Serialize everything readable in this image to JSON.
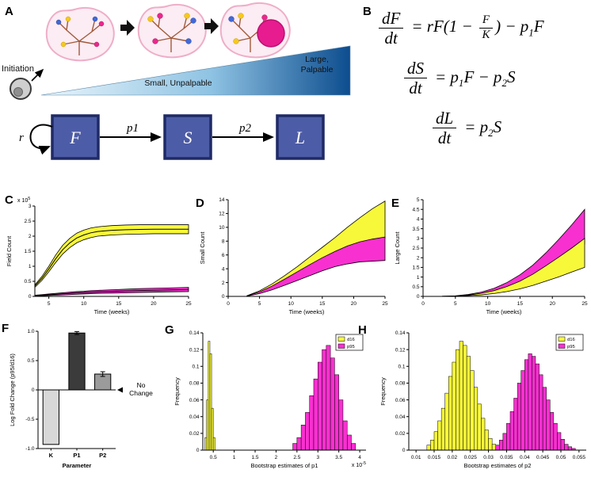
{
  "panels": {
    "a": {
      "label": "A",
      "initiation_label": "Initiation",
      "gradient_label_small": "Small, Unpalpable",
      "gradient_label_large_1": "Large,",
      "gradient_label_large_2": "Palpable",
      "box_f": "F",
      "box_s": "S",
      "box_l": "L",
      "rate_r": "r",
      "rate_p1": "p1",
      "rate_p2": "p2"
    },
    "b": {
      "label": "B",
      "eq1": {
        "num": "dF",
        "den": "dt",
        "a": "= rF(1 − ",
        "fnum": "F",
        "fden": "K",
        "b": ") − p",
        "s1": "1",
        "c": "F"
      },
      "eq2": {
        "num": "dS",
        "den": "dt",
        "a": "= p",
        "s1": "1",
        "b": "F − p",
        "s2": "2",
        "c": "S"
      },
      "eq3": {
        "num": "dL",
        "den": "dt",
        "a": "= p",
        "s1": "2",
        "b": "S"
      }
    },
    "c": {
      "label": "C"
    },
    "d": {
      "label": "D"
    },
    "e": {
      "label": "E"
    },
    "f": {
      "label": "F"
    },
    "g": {
      "label": "G"
    },
    "h": {
      "label": "H"
    }
  },
  "colors": {
    "yellow": "#f8f83a",
    "magenta": "#f830d0",
    "box_blue": "#4d5ca6"
  },
  "chart_data": [
    {
      "id": "field-count",
      "panel": "C",
      "type": "area",
      "xlabel": "Time (weeks)",
      "ylabel": "Field Count",
      "y_multiplier_base": "x 10",
      "y_multiplier_exp": "5",
      "xlim": [
        3,
        25
      ],
      "ylim": [
        0,
        3
      ],
      "xticks": [
        5,
        10,
        15,
        20,
        25
      ],
      "yticks": [
        0,
        0.5,
        1,
        1.5,
        2,
        2.5,
        3
      ],
      "ytick_labels": [
        "0",
        "0.5",
        "1",
        "1.5",
        "2",
        "2.5",
        "3"
      ],
      "series": [
        {
          "name": "d16",
          "color": "yellow",
          "center": true,
          "x": [
            3,
            4,
            5,
            6,
            7,
            8,
            9,
            10,
            11,
            12,
            14,
            16,
            18,
            20,
            22,
            25
          ],
          "upper": [
            0.38,
            0.66,
            1.0,
            1.38,
            1.7,
            1.93,
            2.1,
            2.2,
            2.27,
            2.31,
            2.35,
            2.37,
            2.38,
            2.38,
            2.38,
            2.38
          ],
          "lower": [
            0.3,
            0.53,
            0.82,
            1.13,
            1.41,
            1.62,
            1.78,
            1.88,
            1.95,
            2.0,
            2.04,
            2.06,
            2.07,
            2.08,
            2.08,
            2.08
          ]
        },
        {
          "name": "p95",
          "color": "magenta",
          "center": true,
          "x": [
            3,
            4,
            5,
            6,
            7,
            8,
            9,
            10,
            11,
            12,
            14,
            16,
            18,
            20,
            22,
            25
          ],
          "upper": [
            0.04,
            0.06,
            0.08,
            0.1,
            0.12,
            0.14,
            0.16,
            0.17,
            0.19,
            0.2,
            0.22,
            0.24,
            0.26,
            0.27,
            0.28,
            0.3
          ],
          "lower": [
            0.01,
            0.02,
            0.03,
            0.04,
            0.05,
            0.06,
            0.07,
            0.08,
            0.09,
            0.1,
            0.11,
            0.12,
            0.13,
            0.14,
            0.15,
            0.16
          ]
        }
      ]
    },
    {
      "id": "small-count",
      "panel": "D",
      "type": "area",
      "xlabel": "Time (weeks)",
      "ylabel": "Small Count",
      "xlim": [
        0,
        25
      ],
      "ylim": [
        0,
        14
      ],
      "xticks": [
        0,
        5,
        10,
        15,
        20,
        25
      ],
      "yticks": [
        0,
        2,
        4,
        6,
        8,
        10,
        12,
        14
      ],
      "series": [
        {
          "name": "d16",
          "color": "yellow",
          "x": [
            3,
            5,
            7,
            9,
            11,
            13,
            15,
            17,
            19,
            21,
            23,
            25
          ],
          "upper": [
            0.1,
            0.8,
            1.8,
            3.0,
            4.3,
            5.7,
            7.1,
            8.5,
            10.0,
            11.4,
            12.7,
            13.8
          ],
          "lower": [
            0.05,
            0.55,
            1.25,
            2.05,
            2.9,
            3.8,
            4.7,
            5.6,
            6.4,
            7.1,
            7.8,
            8.4
          ]
        },
        {
          "name": "p95",
          "color": "magenta",
          "x": [
            3,
            5,
            7,
            9,
            11,
            13,
            15,
            17,
            19,
            21,
            23,
            25
          ],
          "upper": [
            0.07,
            0.65,
            1.5,
            2.5,
            3.55,
            4.6,
            5.6,
            6.5,
            7.3,
            7.9,
            8.3,
            8.6
          ],
          "lower": [
            0.04,
            0.4,
            0.95,
            1.6,
            2.3,
            3.0,
            3.7,
            4.3,
            4.7,
            5.0,
            5.1,
            5.2
          ]
        }
      ]
    },
    {
      "id": "large-count",
      "panel": "E",
      "type": "area",
      "xlabel": "Time (weeks)",
      "ylabel": "Large Count",
      "xlim": [
        0,
        25
      ],
      "ylim": [
        0,
        5
      ],
      "xticks": [
        0,
        5,
        10,
        15,
        20,
        25
      ],
      "yticks": [
        0,
        0.5,
        1,
        1.5,
        2,
        2.5,
        3,
        3.5,
        4,
        4.5,
        5
      ],
      "ytick_labels": [
        "0",
        "0.5",
        "1",
        "1.5",
        "2",
        "2.5",
        "3",
        "3.5",
        "4",
        "4.5",
        "5"
      ],
      "series": [
        {
          "name": "p95",
          "color": "magenta",
          "x": [
            3,
            5,
            7,
            9,
            11,
            13,
            15,
            17,
            19,
            21,
            23,
            25
          ],
          "upper": [
            0.01,
            0.03,
            0.1,
            0.22,
            0.42,
            0.72,
            1.12,
            1.62,
            2.25,
            2.95,
            3.7,
            4.5
          ],
          "lower": [
            0.0,
            0.02,
            0.06,
            0.13,
            0.25,
            0.43,
            0.67,
            0.98,
            1.35,
            1.78,
            2.25,
            2.7
          ]
        },
        {
          "name": "d16",
          "color": "yellow",
          "x": [
            3,
            5,
            7,
            9,
            11,
            13,
            15,
            17,
            19,
            21,
            23,
            25
          ],
          "upper": [
            0.01,
            0.02,
            0.07,
            0.16,
            0.3,
            0.51,
            0.79,
            1.15,
            1.58,
            2.03,
            2.5,
            3.0
          ],
          "lower": [
            0.0,
            0.01,
            0.04,
            0.08,
            0.15,
            0.25,
            0.39,
            0.57,
            0.79,
            1.01,
            1.26,
            1.5
          ]
        }
      ]
    },
    {
      "id": "fold-change",
      "panel": "F",
      "type": "bar",
      "xlabel": "Parameter",
      "ylabel": "Log Fold Change (p95/d16)",
      "ylim": [
        -1,
        1
      ],
      "yticks": [
        -1,
        -0.5,
        0,
        0.5,
        1
      ],
      "ytick_labels": [
        "-1.0",
        "-0.5",
        "0",
        "0.5",
        "1.0"
      ],
      "categories": [
        "K",
        "P1",
        "P2"
      ],
      "values": [
        -0.93,
        0.97,
        0.27
      ],
      "errors": [
        0,
        0.025,
        0.04
      ],
      "bar_colors": [
        "#d8d8d8",
        "#3b3b3b",
        "#9b9b9b"
      ],
      "annotation": {
        "lines": [
          "No",
          "Change"
        ],
        "y": 0
      }
    },
    {
      "id": "bootstrap-p1",
      "panel": "G",
      "type": "histogram",
      "xlabel": "Bootstrap estimates of p1",
      "ylabel": "Frequency",
      "x_multiplier_base": "x 10",
      "x_multiplier_exp": "-5",
      "xlim": [
        0.25,
        4.15
      ],
      "ylim": [
        0,
        0.14
      ],
      "xticks": [
        0.5,
        1,
        1.5,
        2,
        2.5,
        3,
        3.5,
        4
      ],
      "xtick_labels": [
        "0.5",
        "1",
        "1.5",
        "2",
        "2.5",
        "3",
        "3.5",
        "4"
      ],
      "yticks": [
        0,
        0.02,
        0.04,
        0.06,
        0.08,
        0.1,
        0.12,
        0.14
      ],
      "ytick_labels": [
        "0",
        "0.02",
        "0.04",
        "0.06",
        "0.08",
        "0.1",
        "0.12",
        "0.14"
      ],
      "legend": {
        "position": "top-right",
        "entries": [
          {
            "label": "d16",
            "color": "yellow"
          },
          {
            "label": "p95",
            "color": "magenta"
          }
        ]
      },
      "series": [
        {
          "name": "d16",
          "color": "yellow",
          "bin_start": 0.3,
          "bin_width": 0.04,
          "heights": [
            0.015,
            0.06,
            0.13,
            0.115,
            0.05,
            0.015
          ]
        },
        {
          "name": "p95",
          "color": "magenta",
          "bin_start": 2.4,
          "bin_width": 0.1,
          "heights": [
            0.008,
            0.015,
            0.03,
            0.045,
            0.065,
            0.085,
            0.105,
            0.12,
            0.125,
            0.11,
            0.09,
            0.06,
            0.035,
            0.018,
            0.008
          ]
        }
      ]
    },
    {
      "id": "bootstrap-p2",
      "panel": "H",
      "type": "histogram",
      "xlabel": "Bootstrap estimates of p2",
      "ylabel": "Frequency",
      "xlim": [
        0.008,
        0.057
      ],
      "ylim": [
        0,
        0.14
      ],
      "xticks": [
        0.01,
        0.015,
        0.02,
        0.025,
        0.03,
        0.035,
        0.04,
        0.045,
        0.05,
        0.055
      ],
      "xtick_labels": [
        "0.01",
        "0.015",
        "0.02",
        "0.025",
        "0.03",
        "0.035",
        "0.04",
        "0.045",
        "0.05",
        "0.055"
      ],
      "yticks": [
        0,
        0.02,
        0.04,
        0.06,
        0.08,
        0.1,
        0.12,
        0.14
      ],
      "ytick_labels": [
        "0",
        "0.02",
        "0.04",
        "0.06",
        "0.08",
        "0.1",
        "0.12",
        "0.14"
      ],
      "legend": {
        "position": "top-right",
        "entries": [
          {
            "label": "d16",
            "color": "yellow"
          },
          {
            "label": "p95",
            "color": "magenta"
          }
        ]
      },
      "series": [
        {
          "name": "d16",
          "color": "yellow",
          "bin_start": 0.013,
          "bin_width": 0.001,
          "heights": [
            0.006,
            0.012,
            0.022,
            0.035,
            0.05,
            0.068,
            0.088,
            0.105,
            0.12,
            0.13,
            0.125,
            0.112,
            0.095,
            0.075,
            0.055,
            0.038,
            0.024,
            0.014,
            0.007,
            0.003
          ]
        },
        {
          "name": "p95",
          "color": "magenta",
          "bin_start": 0.032,
          "bin_width": 0.001,
          "heights": [
            0.006,
            0.012,
            0.02,
            0.032,
            0.046,
            0.062,
            0.08,
            0.095,
            0.108,
            0.115,
            0.112,
            0.103,
            0.09,
            0.075,
            0.06,
            0.045,
            0.032,
            0.021,
            0.013,
            0.007,
            0.004,
            0.002
          ]
        }
      ]
    }
  ]
}
